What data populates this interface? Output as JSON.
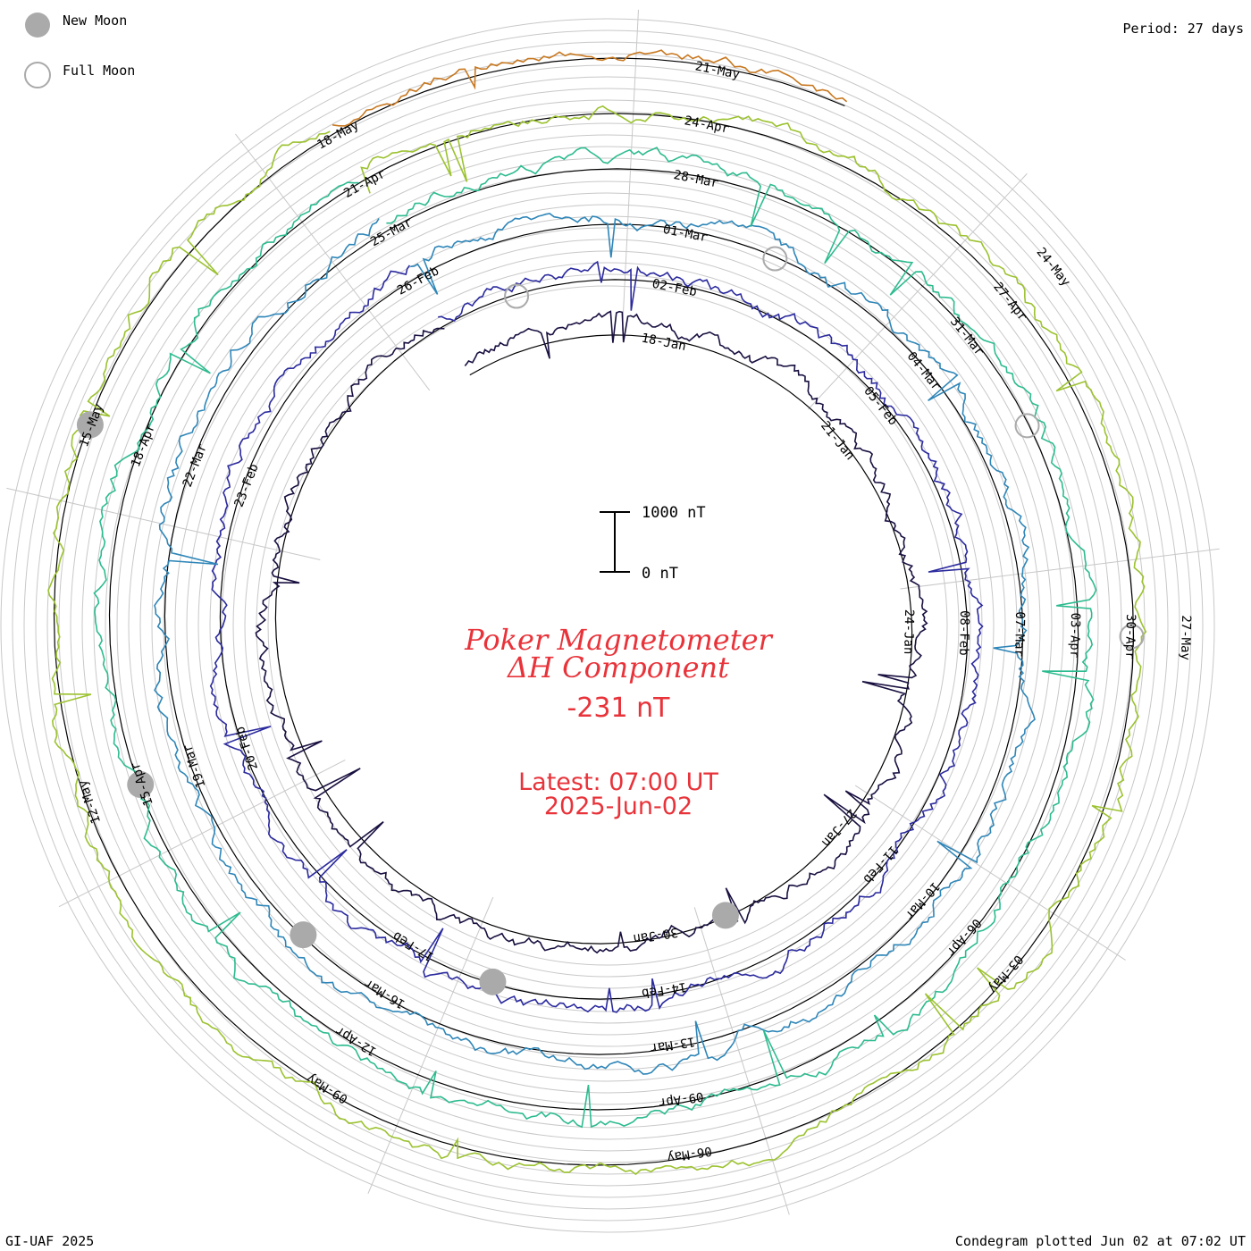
{
  "legend": {
    "new_moon": "New Moon",
    "full_moon": "Full Moon",
    "new_moon_color": "#aaaaaa",
    "full_moon_color": "#aaaaaa"
  },
  "period": "Period: 27 days",
  "title_line1": "Poker Magnetometer",
  "title_line2": "ΔH Component",
  "current_value": "-231 nT",
  "latest_time": "Latest: 07:00 UT",
  "latest_date": "2025-Jun-02",
  "scale_top": "1000 nT",
  "scale_bottom": "0 nT",
  "credit": "GI-UAF 2025",
  "footer": "Condegram plotted Jun 02 at 07:02 UT",
  "title_color": "#e8333a",
  "chart_data": {
    "type": "line",
    "style": "condegram (spiral), 27-day rotation, clockwise from top",
    "start": "2025-Jan-15",
    "end": "2025-Jun-02",
    "series": [
      {
        "color": "#1a1040",
        "date_labels": [
          "18-Jan",
          "21-Jan",
          "24-Jan",
          "27-Jan",
          "30-Jan"
        ]
      },
      {
        "color": "#2b2a9e",
        "date_labels": [
          "02-Feb",
          "05-Feb",
          "08-Feb",
          "11-Feb",
          "14-Feb",
          "17-Feb",
          "20-Feb",
          "23-Feb",
          "26-Feb"
        ]
      },
      {
        "color": "#2f86b8",
        "date_labels": [
          "01-Mar",
          "04-Mar",
          "07-Mar",
          "10-Mar",
          "13-Mar",
          "16-Mar",
          "19-Mar",
          "22-Mar",
          "25-Mar"
        ]
      },
      {
        "color": "#2dbb8f",
        "date_labels": [
          "28-Mar",
          "31-Mar",
          "03-Apr",
          "06-Apr",
          "09-Apr",
          "12-Apr",
          "15-Apr",
          "18-Apr",
          "21-Apr"
        ]
      },
      {
        "color": "#9cc230",
        "date_labels": [
          "24-Apr",
          "27-Apr",
          "30-Apr",
          "03-May",
          "06-May",
          "09-May",
          "12-May",
          "15-May",
          "18-May"
        ]
      },
      {
        "color": "#c87820",
        "date_labels": [
          "21-May",
          "24-May",
          "27-May"
        ]
      },
      {
        "color": "#c01818",
        "date_labels": []
      }
    ],
    "new_moon_dates": [
      "2025-Jan-29",
      "2025-Feb-28",
      "2025-Mar-29",
      "2025-Apr-27",
      "2025-May-27"
    ],
    "full_moon_dates": [
      "2025-Feb-12",
      "2025-Mar-14",
      "2025-Apr-13",
      "2025-May-12"
    ],
    "ylabel": "ΔH (nT)",
    "scale_bar": [
      0,
      1000
    ]
  }
}
